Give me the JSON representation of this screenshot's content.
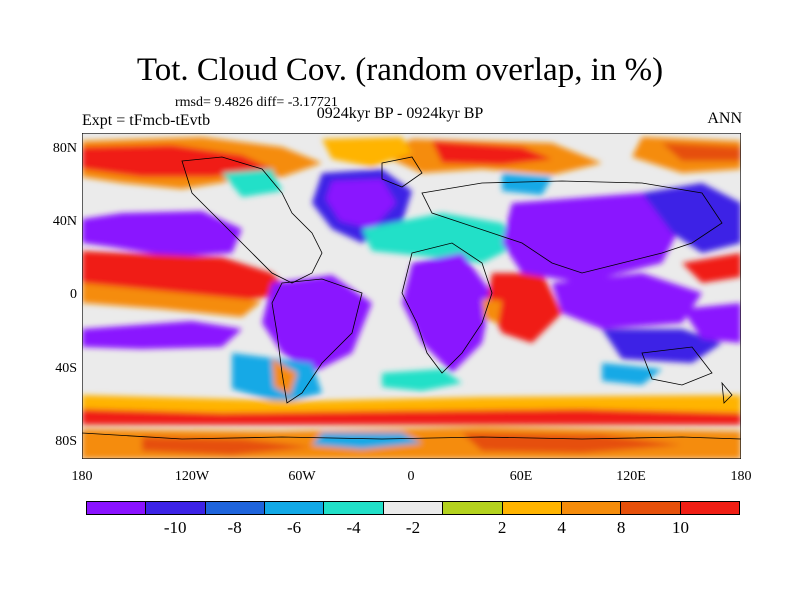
{
  "header": {
    "title": "Tot. Cloud Cov. (random overlap, in %)",
    "stats": "rmsd= 9.4826 diff= -3.17721",
    "experiment": "Expt = tFmcb-tEvtb",
    "period": "0924kyr BP - 0924kyr BP",
    "season": "ANN"
  },
  "map": {
    "y_labels": [
      "80N",
      "40N",
      "0",
      "40S",
      "80S"
    ],
    "x_labels": [
      "180",
      "120W",
      "60W",
      "0",
      "60E",
      "120E",
      "180"
    ]
  },
  "colorbar": {
    "colors": [
      "#8a12ff",
      "#3c23e6",
      "#1e64dc",
      "#12a9e6",
      "#21e0c8",
      "#ebebeb",
      "#b4d21e",
      "#ffb400",
      "#f58c0a",
      "#e6500a",
      "#f01e14"
    ],
    "labels": [
      "-10",
      "-8",
      "-6",
      "-4",
      "-2",
      "2",
      "4",
      "8",
      "10"
    ]
  }
}
